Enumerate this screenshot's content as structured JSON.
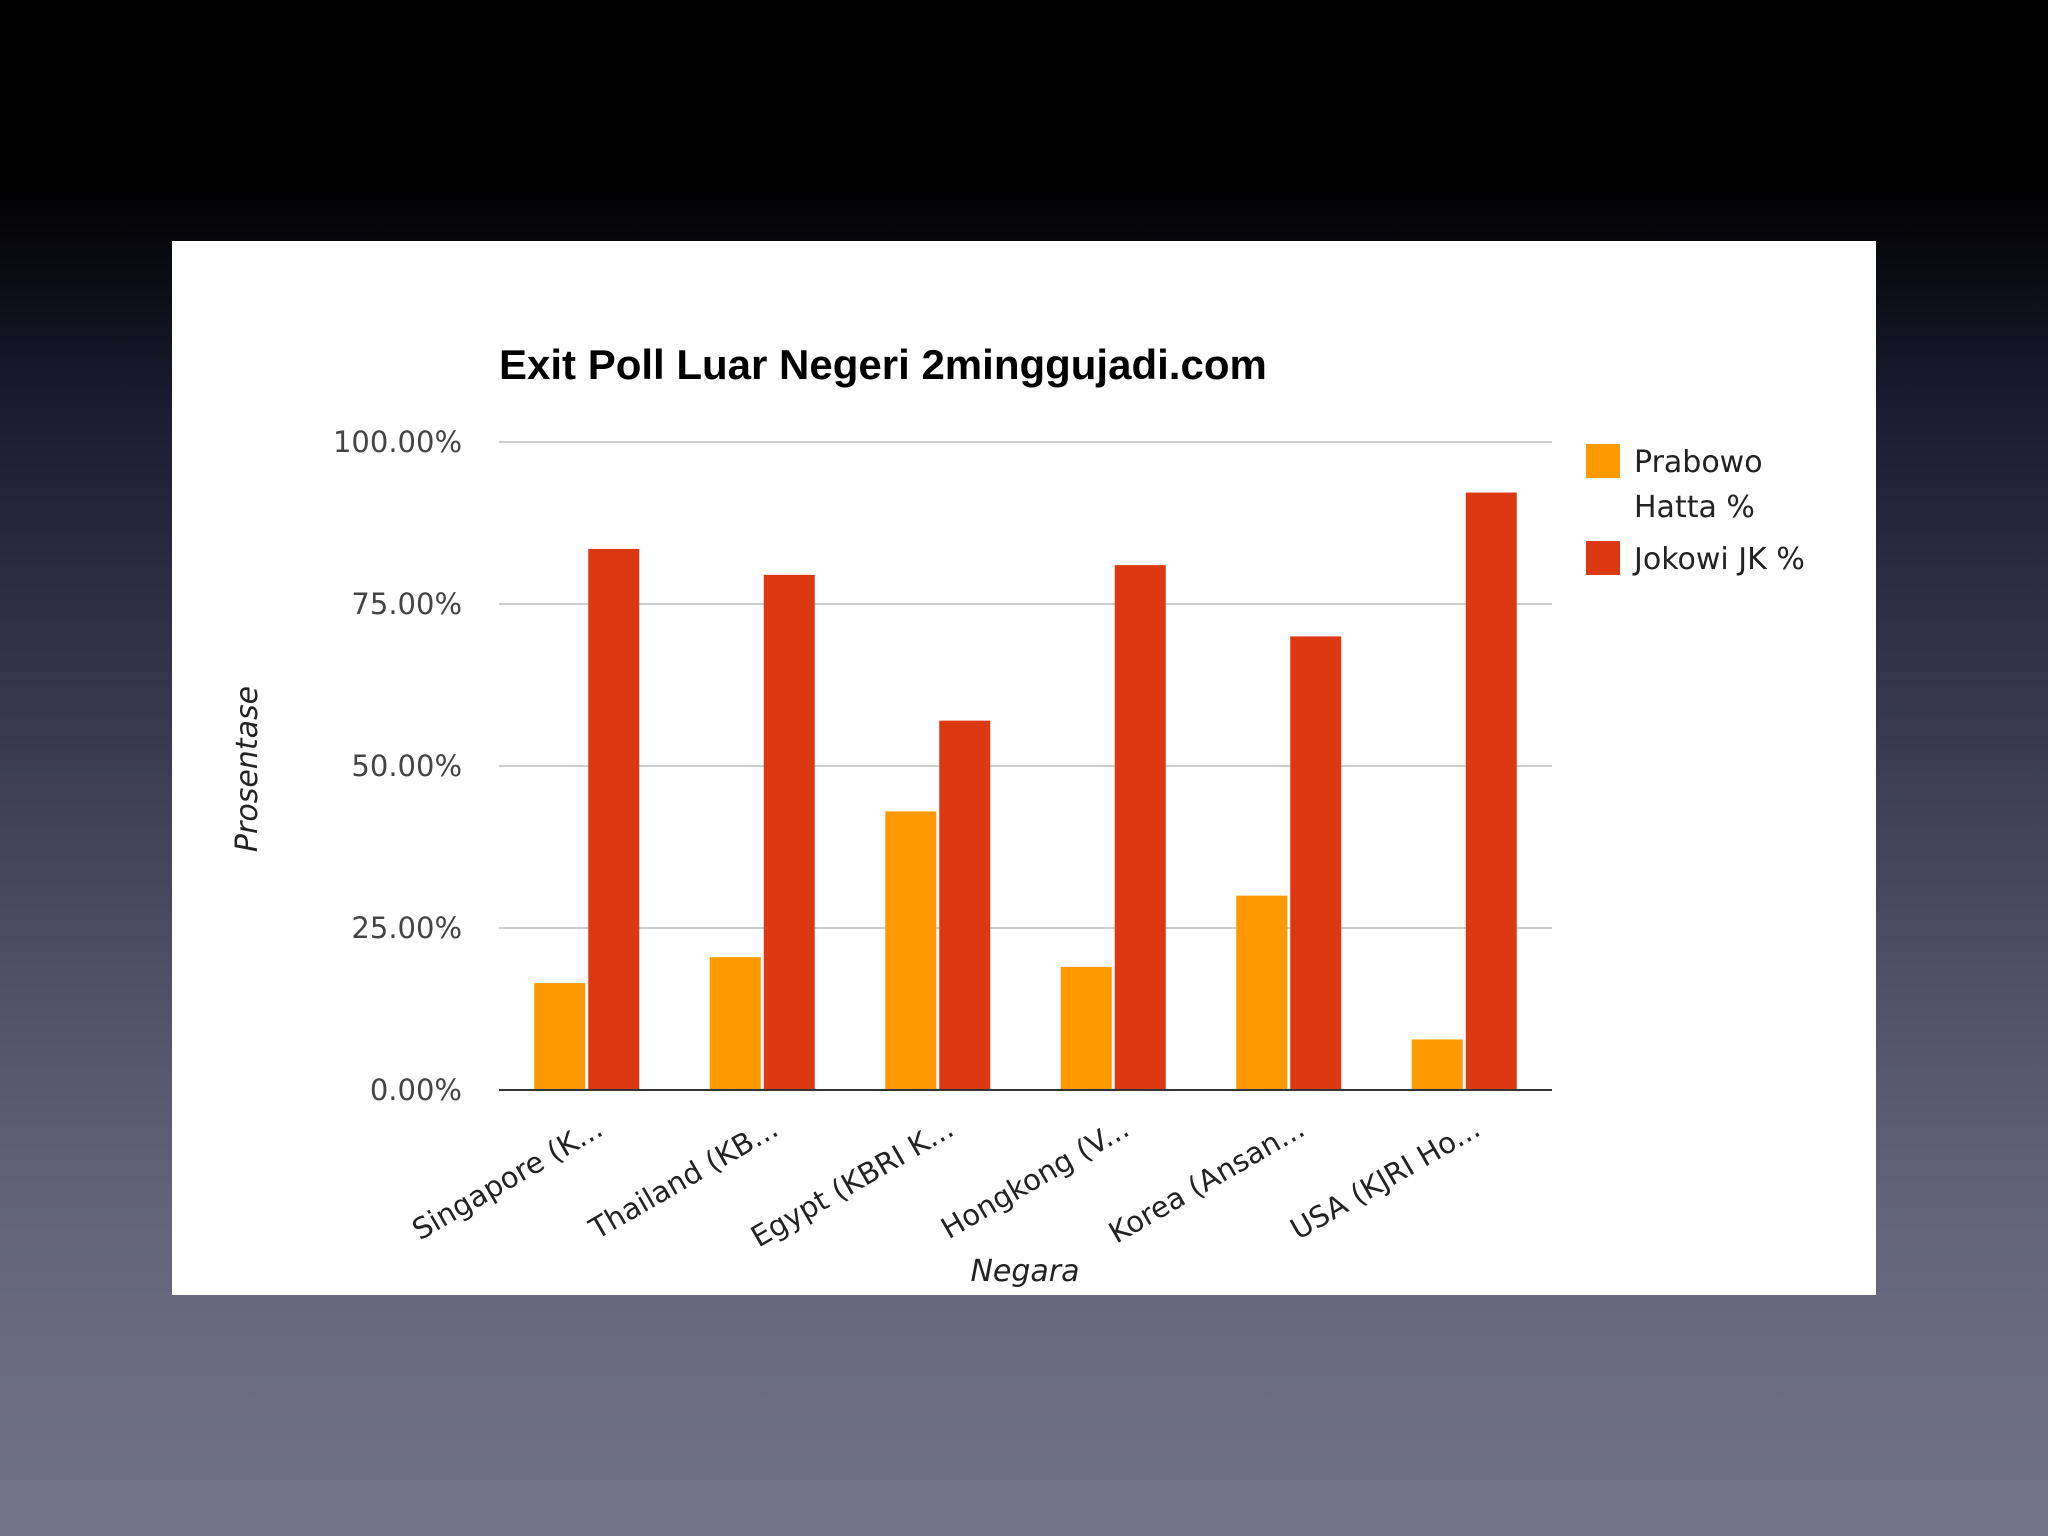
{
  "chart_data": {
    "type": "bar",
    "title": "Exit Poll Luar Negeri 2minggujadi.com",
    "xlabel": "Negara",
    "ylabel": "Prosentase",
    "ylim": [
      0,
      100
    ],
    "yticks": [
      "0.00%",
      "25.00%",
      "50.00%",
      "75.00%",
      "100.00%"
    ],
    "ytick_values": [
      0,
      25,
      50,
      75,
      100
    ],
    "grid": true,
    "legend_position": "right",
    "categories": [
      "Singapore (K...",
      "Thailand (KB...",
      "Egypt (KBRI K...",
      "Hongkong (V...",
      "Korea (Ansan...",
      "USA (KJRI Ho..."
    ],
    "series": [
      {
        "name": "Prabowo Hatta %",
        "legend_lines": [
          "Prabowo",
          "Hatta %"
        ],
        "color": "#ff9900",
        "values": [
          16.5,
          20.5,
          43,
          19,
          30,
          7.8
        ]
      },
      {
        "name": "Jokowi JK %",
        "legend_lines": [
          "Jokowi JK %"
        ],
        "color": "#dc3912",
        "values": [
          83.5,
          79.5,
          57,
          81,
          70,
          92.2
        ]
      }
    ]
  }
}
